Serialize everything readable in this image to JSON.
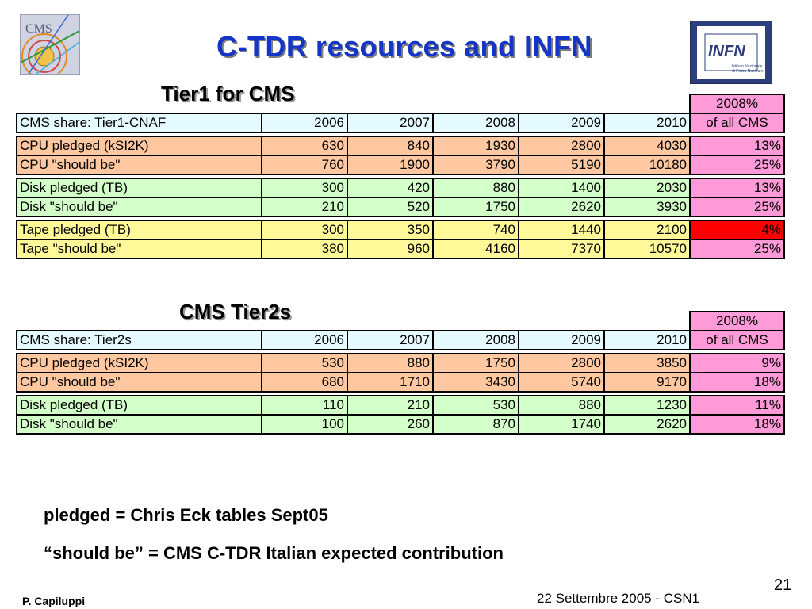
{
  "title": "C-TDR resources and INFN",
  "logos": {
    "cms_text": "CMS",
    "infn_text": "INFN",
    "infn_sub1": "Istituto Nazionale",
    "infn_sub2": "di Fisica Nucleare"
  },
  "tier1": {
    "title": "Tier1 for CMS",
    "pct_header_line1": "2008%",
    "pct_header_line2": "of all CMS",
    "header": {
      "label": "CMS share: Tier1-CNAF",
      "years": [
        "2006",
        "2007",
        "2008",
        "2009",
        "2010"
      ]
    },
    "groups": [
      {
        "kind": "cpu",
        "rows": [
          {
            "label": "CPU pledged (kSI2K)",
            "values": [
              "630",
              "840",
              "1930",
              "2800",
              "4030"
            ],
            "pct": "13%"
          },
          {
            "label": "CPU \"should be\"",
            "values": [
              "760",
              "1900",
              "3790",
              "5190",
              "10180"
            ],
            "pct": "25%"
          }
        ]
      },
      {
        "kind": "disk",
        "rows": [
          {
            "label": "Disk pledged (TB)",
            "values": [
              "300",
              "420",
              "880",
              "1400",
              "2030"
            ],
            "pct": "13%"
          },
          {
            "label": "Disk \"should be\"",
            "values": [
              "210",
              "520",
              "1750",
              "2620",
              "3930"
            ],
            "pct": "25%"
          }
        ]
      },
      {
        "kind": "tape",
        "rows": [
          {
            "label": "Tape pledged (TB)",
            "values": [
              "300",
              "350",
              "740",
              "1440",
              "2100"
            ],
            "pct": "4%",
            "highlight": true
          },
          {
            "label": "Tape \"should be\"",
            "values": [
              "380",
              "960",
              "4160",
              "7370",
              "10570"
            ],
            "pct": "25%"
          }
        ]
      }
    ]
  },
  "tier2": {
    "title": "CMS Tier2s",
    "pct_header_line1": "2008%",
    "pct_header_line2": "of all CMS",
    "header": {
      "label": "CMS share: Tier2s",
      "years": [
        "2006",
        "2007",
        "2008",
        "2009",
        "2010"
      ]
    },
    "groups": [
      {
        "kind": "cpu",
        "rows": [
          {
            "label": "CPU pledged (kSI2K)",
            "values": [
              "530",
              "880",
              "1750",
              "2800",
              "3850"
            ],
            "pct": "9%"
          },
          {
            "label": "CPU \"should be\"",
            "values": [
              "680",
              "1710",
              "3430",
              "5740",
              "9170"
            ],
            "pct": "18%"
          }
        ]
      },
      {
        "kind": "disk",
        "rows": [
          {
            "label": "Disk pledged (TB)",
            "values": [
              "110",
              "210",
              "530",
              "880",
              "1230"
            ],
            "pct": "11%"
          },
          {
            "label": "Disk \"should be\"",
            "values": [
              "100",
              "260",
              "870",
              "1740",
              "2620"
            ],
            "pct": "18%"
          }
        ]
      }
    ]
  },
  "notes": [
    "pledged = Chris Eck tables Sept05",
    "“should be” = CMS C-TDR Italian expected contribution"
  ],
  "footer": {
    "author": "P. Capiluppi",
    "date": "22 Settembre 2005 - CSN1",
    "page": "21"
  },
  "colors": {
    "title": "#1535c8",
    "header_row": "#e5fbff",
    "pct_col": "#ff9ad8",
    "cpu": "#ffc8a0",
    "disk": "#d3ffc8",
    "tape": "#fff99a",
    "alert": "#ff0000"
  }
}
